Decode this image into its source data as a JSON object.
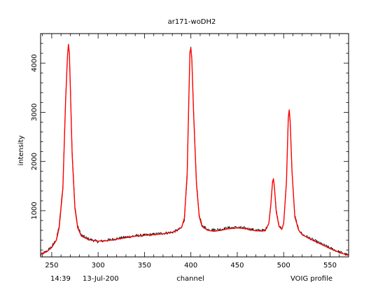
{
  "chart_data": {
    "type": "line",
    "title": "ar171-woDH2",
    "xlabel": "channel",
    "ylabel": "intensity",
    "xlim": [
      238,
      570
    ],
    "ylim": [
      60,
      4600
    ],
    "x_ticks": [
      250,
      300,
      350,
      400,
      450,
      500,
      550
    ],
    "y_ticks": [
      1000,
      2000,
      3000,
      4000
    ],
    "footer_time": "14:39",
    "footer_date": "13-Jul-200",
    "footer_note": "VOIG profile",
    "grid": false,
    "series": [
      {
        "colour": "#000000",
        "noise": 30,
        "x": [
          238,
          245,
          250,
          255,
          258,
          262,
          265,
          267,
          268,
          269,
          270,
          272,
          275,
          278,
          282,
          290,
          300,
          310,
          320,
          330,
          340,
          350,
          360,
          370,
          380,
          385,
          390,
          393,
          396,
          398,
          399,
          400,
          401,
          403,
          406,
          409,
          412,
          418,
          425,
          432,
          440,
          450,
          460,
          470,
          480,
          484,
          486,
          488,
          489,
          490,
          492,
          495,
          498,
          500,
          503,
          505,
          506,
          507,
          509,
          512,
          516,
          520,
          530,
          540,
          550,
          560,
          570
        ],
        "y": [
          100,
          180,
          270,
          420,
          700,
          1500,
          3300,
          4150,
          4400,
          4200,
          3600,
          2200,
          1100,
          680,
          500,
          420,
          370,
          400,
          430,
          460,
          490,
          500,
          520,
          540,
          560,
          600,
          650,
          820,
          1700,
          3400,
          4200,
          4300,
          4100,
          3000,
          1600,
          900,
          700,
          620,
          610,
          620,
          650,
          660,
          640,
          600,
          600,
          750,
          1100,
          1600,
          1660,
          1500,
          1000,
          700,
          620,
          750,
          1600,
          2900,
          3050,
          2800,
          1800,
          900,
          620,
          520,
          420,
          330,
          240,
          160,
          90
        ]
      },
      {
        "colour": "#ff0000",
        "noise": 0,
        "x": [
          238,
          245,
          250,
          255,
          258,
          262,
          265,
          267,
          268,
          269,
          270,
          272,
          275,
          278,
          282,
          290,
          300,
          310,
          320,
          330,
          340,
          350,
          360,
          370,
          380,
          385,
          390,
          393,
          396,
          398,
          399,
          400,
          401,
          403,
          406,
          409,
          412,
          418,
          425,
          432,
          440,
          450,
          460,
          470,
          480,
          484,
          486,
          488,
          489,
          490,
          492,
          495,
          498,
          500,
          503,
          505,
          506,
          507,
          509,
          512,
          516,
          520,
          530,
          540,
          550,
          560,
          570
        ],
        "y": [
          110,
          170,
          250,
          400,
          650,
          1450,
          3250,
          4150,
          4380,
          4200,
          3550,
          2150,
          1050,
          650,
          480,
          410,
          380,
          390,
          420,
          450,
          480,
          500,
          510,
          530,
          560,
          600,
          660,
          850,
          1750,
          3450,
          4230,
          4300,
          4080,
          2950,
          1550,
          880,
          680,
          600,
          580,
          600,
          630,
          650,
          630,
          590,
          590,
          740,
          1080,
          1580,
          1650,
          1480,
          980,
          680,
          620,
          740,
          1580,
          2880,
          3050,
          2820,
          1800,
          880,
          610,
          510,
          410,
          320,
          230,
          150,
          90
        ]
      }
    ]
  }
}
